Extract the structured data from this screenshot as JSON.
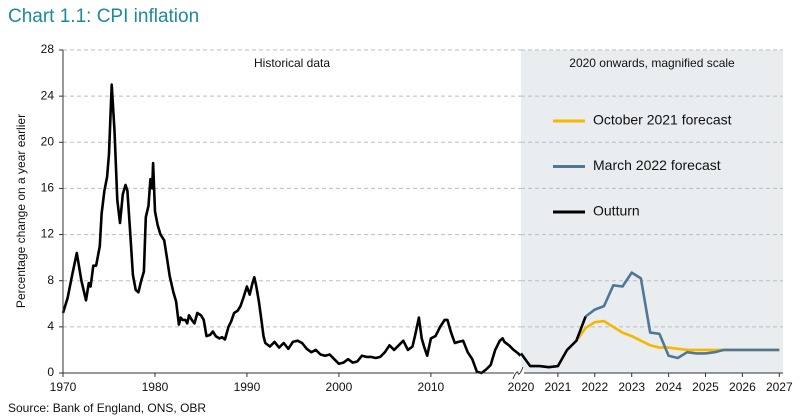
{
  "chart_data": [
    {
      "type": "line",
      "title": "Chart 1.1: CPI inflation",
      "ylabel": "Percentage change on a year earlier",
      "annotation": "Historical data",
      "source": "Source: Bank of England, ONS, OBR",
      "xlim": [
        1970,
        2019.8
      ],
      "xticks": [
        1970,
        1980,
        1990,
        2000,
        2010
      ],
      "ylim": [
        0,
        28
      ],
      "yticks": [
        0,
        4,
        8,
        12,
        16,
        20,
        24,
        28
      ],
      "grid": true,
      "series": [
        {
          "color": "#000000",
          "x": [
            1970.0,
            1970.5,
            1971,
            1971.5,
            1972,
            1972.5,
            1972.8,
            1973,
            1973.3,
            1973.6,
            1974,
            1974.2,
            1974.5,
            1974.8,
            1975,
            1975.3,
            1975.6,
            1975.9,
            1976.2,
            1976.5,
            1976.8,
            1977,
            1977.3,
            1977.6,
            1977.9,
            1978.2,
            1978.5,
            1978.8,
            1979,
            1979.3,
            1979.5,
            1979.7,
            1979.8,
            1980,
            1980.3,
            1980.6,
            1981,
            1981.3,
            1981.6,
            1982,
            1982.3,
            1982.6,
            1982.8,
            1983,
            1983.3,
            1983.5,
            1983.7,
            1984,
            1984.3,
            1984.6,
            1985,
            1985.3,
            1985.6,
            1986,
            1986.3,
            1986.6,
            1987,
            1987.3,
            1987.6,
            1988,
            1988.3,
            1988.6,
            1989,
            1989.3,
            1989.6,
            1990,
            1990.3,
            1990.6,
            1990.8,
            1991,
            1991.3,
            1991.6,
            1991.8,
            1992,
            1992.5,
            1993,
            1993.5,
            1994,
            1994.5,
            1995,
            1995.5,
            1996,
            1996.5,
            1997,
            1997.5,
            1998,
            1998.5,
            1999,
            1999.5,
            2000,
            2000.5,
            2001,
            2001.5,
            2002,
            2002.5,
            2003,
            2003.5,
            2004,
            2004.5,
            2005,
            2005.5,
            2006,
            2006.5,
            2007,
            2007.5,
            2008,
            2008.3,
            2008.7,
            2009,
            2009.3,
            2009.6,
            2010,
            2010.5,
            2011,
            2011.5,
            2011.8,
            2012.2,
            2012.6,
            2013,
            2013.5,
            2014,
            2014.5,
            2015,
            2015.5,
            2016,
            2016.5,
            2017,
            2017.5,
            2017.8,
            2018,
            2018.5,
            2019,
            2019.5,
            2019.75
          ],
          "values": [
            5.2,
            6.5,
            8.5,
            10.4,
            8.0,
            6.3,
            7.8,
            7.5,
            9.3,
            9.3,
            11,
            13.8,
            15.8,
            17,
            19,
            25,
            21,
            15,
            13,
            15.5,
            16.3,
            15.8,
            12.3,
            8.5,
            7.2,
            7.0,
            8,
            8.8,
            13.5,
            14.5,
            16.8,
            16.0,
            18.2,
            14,
            12.8,
            12.0,
            11.5,
            10.0,
            8.4,
            7.0,
            6.2,
            4.2,
            4.8,
            4.6,
            4.6,
            4.3,
            5.0,
            4.6,
            4.3,
            5.2,
            5.0,
            4.6,
            3.2,
            3.3,
            3.6,
            3.2,
            3.0,
            3.1,
            2.9,
            4.0,
            4.5,
            5.2,
            5.4,
            5.8,
            6.5,
            7.5,
            6.8,
            7.8,
            8.3,
            7.6,
            6.2,
            4.4,
            3.2,
            2.6,
            2.3,
            2.7,
            2.2,
            2.6,
            2.1,
            2.7,
            2.8,
            2.6,
            2.1,
            1.8,
            2.0,
            1.6,
            1.5,
            1.6,
            1.2,
            0.8,
            0.9,
            1.2,
            0.9,
            1.0,
            1.5,
            1.4,
            1.4,
            1.3,
            1.4,
            1.8,
            2.4,
            2.0,
            2.4,
            2.8,
            2.0,
            2.3,
            3.3,
            4.8,
            3.0,
            2.2,
            1.5,
            3.0,
            3.2,
            4.0,
            4.6,
            4.6,
            3.5,
            2.6,
            2.7,
            2.8,
            1.8,
            1.2,
            0.1,
            0.0,
            0.3,
            0.7,
            2.0,
            2.8,
            3.0,
            2.7,
            2.4,
            2.0,
            1.7,
            1.5
          ]
        }
      ]
    },
    {
      "type": "line",
      "annotation": "2020 onwards, magnified scale",
      "background": "#e9edf0",
      "legend": "right",
      "xlim": [
        2020,
        2027.1
      ],
      "xticks": [
        2020,
        2021,
        2022,
        2023,
        2024,
        2025,
        2026,
        2027
      ],
      "ylim": [
        0,
        28
      ],
      "yticks": [
        0,
        4,
        8,
        12,
        16,
        20,
        24,
        28
      ],
      "grid": true,
      "series": [
        {
          "name": "October 2021 forecast",
          "color": "#f5b800",
          "x": [
            2021.5,
            2021.75,
            2022.0,
            2022.25,
            2022.5,
            2022.75,
            2023.0,
            2023.25,
            2023.5,
            2023.75,
            2024.0,
            2024.25,
            2024.5,
            2024.75,
            2025.0,
            2025.25,
            2025.5,
            2025.75,
            2026.0,
            2026.25,
            2026.5,
            2026.75,
            2027.0
          ],
          "values": [
            2.8,
            3.9,
            4.4,
            4.5,
            4.0,
            3.5,
            3.2,
            2.8,
            2.4,
            2.2,
            2.2,
            2.1,
            2.0,
            2.0,
            2.0,
            2.0,
            2.0,
            2.0,
            2.0,
            2.0,
            2.0,
            2.0,
            2.0
          ]
        },
        {
          "name": "March 2022 forecast",
          "color": "#4f7896",
          "x": [
            2021.75,
            2022.0,
            2022.25,
            2022.5,
            2022.75,
            2023.0,
            2023.25,
            2023.5,
            2023.75,
            2024.0,
            2024.25,
            2024.5,
            2024.75,
            2025.0,
            2025.25,
            2025.5,
            2025.75,
            2026.0,
            2026.25,
            2026.5,
            2026.75,
            2027.0
          ],
          "values": [
            4.9,
            5.5,
            5.8,
            7.6,
            7.5,
            8.7,
            8.2,
            3.5,
            3.4,
            1.5,
            1.3,
            1.8,
            1.7,
            1.7,
            1.8,
            2.0,
            2.0,
            2.0,
            2.0,
            2.0,
            2.0,
            2.0
          ]
        },
        {
          "name": "Outturn",
          "color": "#000000",
          "x": [
            2020.0,
            2020.25,
            2020.5,
            2020.75,
            2021.0,
            2021.25,
            2021.5,
            2021.75
          ],
          "values": [
            1.7,
            0.6,
            0.6,
            0.5,
            0.6,
            2.0,
            2.8,
            4.9
          ]
        }
      ]
    }
  ]
}
